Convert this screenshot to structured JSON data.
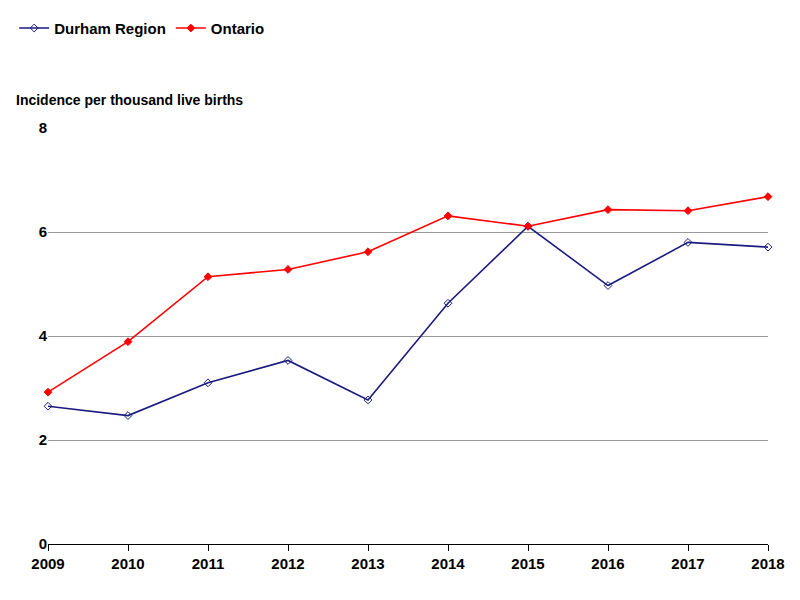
{
  "chart_data": {
    "type": "line",
    "y_label": "Incidence per thousand live births",
    "x": [
      2009,
      2010,
      2011,
      2012,
      2013,
      2014,
      2015,
      2016,
      2017,
      2018
    ],
    "series": [
      {
        "name": "Durham Region",
        "color": "#1a1a80",
        "marker": "diamond-open",
        "line_style": "solid",
        "values": [
          2.65,
          2.47,
          3.1,
          3.53,
          2.77,
          4.63,
          6.11,
          4.97,
          5.8,
          5.71
        ]
      },
      {
        "name": "Ontario",
        "color": "#ff0000",
        "marker": "diamond",
        "line_style": "solid",
        "values": [
          2.92,
          3.89,
          5.14,
          5.28,
          5.62,
          6.31,
          6.11,
          6.43,
          6.41,
          6.68
        ]
      }
    ],
    "xlim": [
      2009,
      2018
    ],
    "xticks": [
      2009,
      2010,
      2011,
      2012,
      2013,
      2014,
      2015,
      2016,
      2017,
      2018
    ],
    "ylim": [
      0,
      8
    ],
    "yticks": [
      0,
      2,
      4,
      6,
      8
    ],
    "grid": true,
    "legend": "top-left"
  }
}
